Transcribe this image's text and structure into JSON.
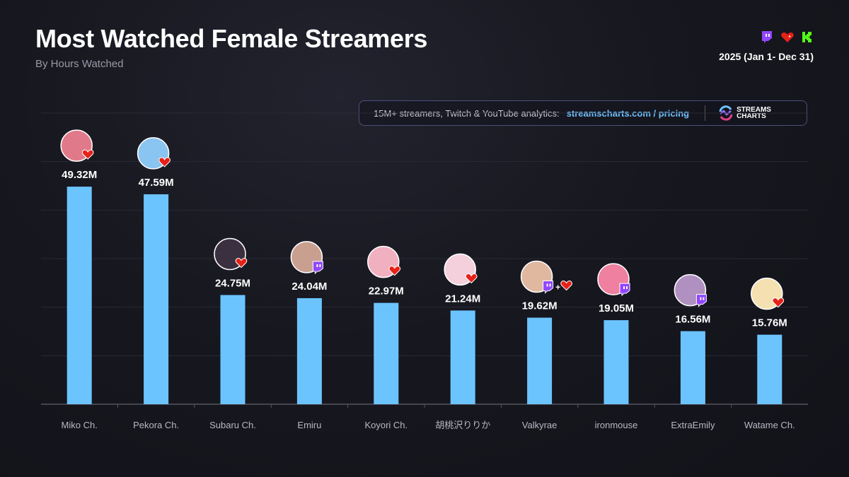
{
  "header": {
    "title": "Most Watched Female Streamers",
    "subtitle": "By Hours Watched",
    "period": "2025 (Jan 1- Dec 31)",
    "platform_icons": [
      "twitch-icon",
      "youtube-heart-icon",
      "kick-icon"
    ]
  },
  "promo": {
    "text": "15M+ streamers, Twitch & YouTube analytics:",
    "link": "streamscharts.com / pricing",
    "logo_line1": "STREAMS",
    "logo_line2": "CHARTS"
  },
  "colors": {
    "bar": "#6cc4ff",
    "twitch": "#9146ff",
    "youtube": "#e62117",
    "kick": "#53fc18"
  },
  "chart_data": {
    "type": "bar",
    "title": "Most Watched Female Streamers",
    "subtitle": "By Hours Watched",
    "unit": "M hours watched",
    "categories": [
      "Miko Ch.",
      "Pekora Ch.",
      "Subaru Ch.",
      "Emiru",
      "Koyori Ch.",
      "胡桃沢りりか",
      "Valkyrae",
      "ironmouse",
      "ExtraEmily",
      "Watame Ch."
    ],
    "values": [
      49.32,
      47.59,
      24.75,
      24.04,
      22.97,
      21.24,
      19.62,
      19.05,
      16.56,
      15.76
    ],
    "labels": [
      "49.32M",
      "47.59M",
      "24.75M",
      "24.04M",
      "22.97M",
      "21.24M",
      "19.62M",
      "19.05M",
      "16.56M",
      "15.76M"
    ],
    "platforms": [
      [
        "youtube"
      ],
      [
        "youtube"
      ],
      [
        "youtube"
      ],
      [
        "twitch"
      ],
      [
        "youtube"
      ],
      [
        "youtube"
      ],
      [
        "twitch",
        "youtube"
      ],
      [
        "twitch"
      ],
      [
        "twitch"
      ],
      [
        "youtube"
      ]
    ],
    "avatar_colors": [
      "#e07a8a",
      "#8ac4f0",
      "#3a3040",
      "#c9a090",
      "#f0b0c0",
      "#f4d0dc",
      "#e0b8a0",
      "#f080a0",
      "#b090c0",
      "#f4e0b0"
    ],
    "ylim": [
      0,
      66
    ],
    "grid": true,
    "legend": "none"
  }
}
